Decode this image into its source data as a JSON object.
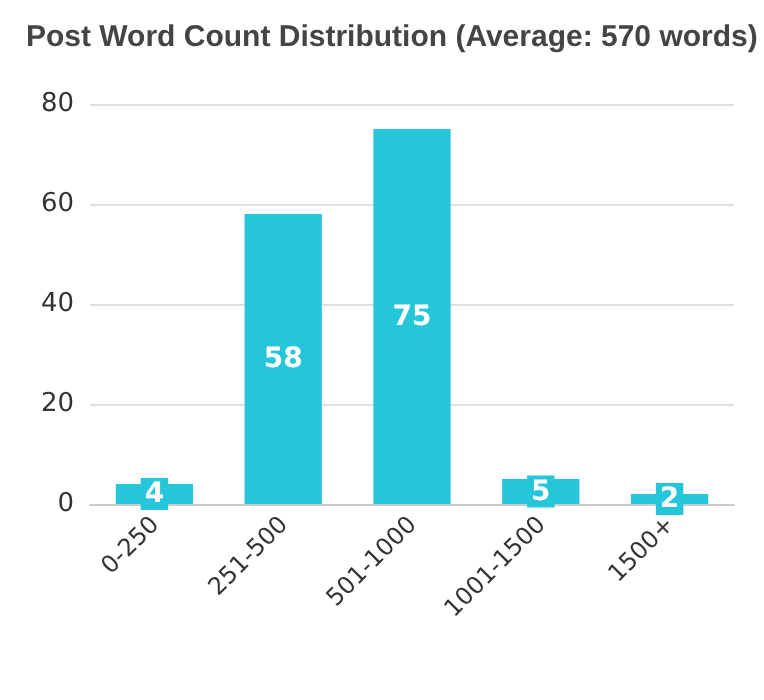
{
  "chart_data": {
    "type": "bar",
    "title": "Post Word Count Distribution (Average: 570 words)",
    "categories": [
      "0-250",
      "251-500",
      "501-1000",
      "1001-1500",
      "1500+"
    ],
    "values": [
      4,
      58,
      75,
      5,
      2
    ],
    "color": "#26c6da",
    "ylim": [
      0,
      80
    ],
    "yticks": [
      0,
      20,
      40,
      60,
      80
    ],
    "grid": "y",
    "data_labels": true
  }
}
